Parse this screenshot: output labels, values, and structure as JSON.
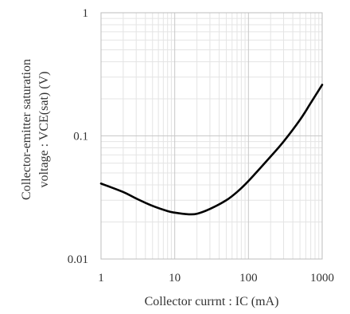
{
  "chart_data": {
    "type": "line",
    "title": "",
    "xlabel": "Collector currnt : IC (mA)",
    "ylabel_lines": [
      "Collector-emitter saturation",
      "voltage : VCE(sat) (V)"
    ],
    "x_scale": "log",
    "y_scale": "log",
    "xlim": [
      1,
      1000
    ],
    "ylim": [
      0.01,
      1
    ],
    "x_ticks": [
      {
        "value": 1,
        "label": "1"
      },
      {
        "value": 10,
        "label": "10"
      },
      {
        "value": 100,
        "label": "100"
      },
      {
        "value": 1000,
        "label": "1000"
      }
    ],
    "y_ticks": [
      {
        "value": 0.01,
        "label": "0.01"
      },
      {
        "value": 0.1,
        "label": "0.1"
      },
      {
        "value": 1,
        "label": "1"
      }
    ],
    "grid": true,
    "legend": "none",
    "series": [
      {
        "color": "#000000",
        "x": [
          1,
          2,
          3,
          5,
          8,
          10,
          15,
          20,
          30,
          50,
          70,
          100,
          200,
          300,
          500,
          700,
          1000
        ],
        "y": [
          0.041,
          0.035,
          0.031,
          0.027,
          0.0245,
          0.0238,
          0.0231,
          0.0233,
          0.0255,
          0.03,
          0.035,
          0.043,
          0.068,
          0.09,
          0.135,
          0.185,
          0.26
        ]
      }
    ],
    "colors": {
      "grid_major": "#c8c8c8",
      "grid_minor": "#e4e4e4",
      "axis": "#bdbdbd"
    }
  }
}
